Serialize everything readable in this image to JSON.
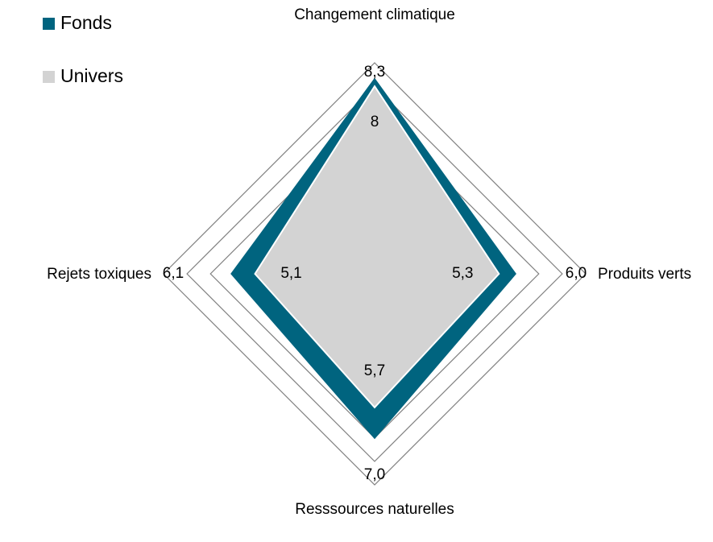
{
  "chart_data": {
    "type": "radar",
    "categories": [
      "Changement climatique",
      "Produits verts",
      "Resssources naturelles",
      "Rejets toxiques"
    ],
    "series": [
      {
        "name": "Fonds",
        "color": "#00647f",
        "values": [
          8.3,
          6.0,
          7.0,
          6.1
        ],
        "value_labels": [
          "8,3",
          "6,0",
          "7,0",
          "6,1"
        ]
      },
      {
        "name": "Univers",
        "color": "#d3d3d3",
        "values": [
          8,
          5.3,
          5.7,
          5.1
        ],
        "value_labels": [
          "8",
          "5,3",
          "5,7",
          "5,1"
        ]
      }
    ],
    "rlim": [
      0,
      9
    ],
    "rticks": [
      0,
      1,
      2,
      3,
      4,
      5,
      6,
      7,
      8,
      9
    ],
    "grid": true,
    "legend": "top-left"
  }
}
